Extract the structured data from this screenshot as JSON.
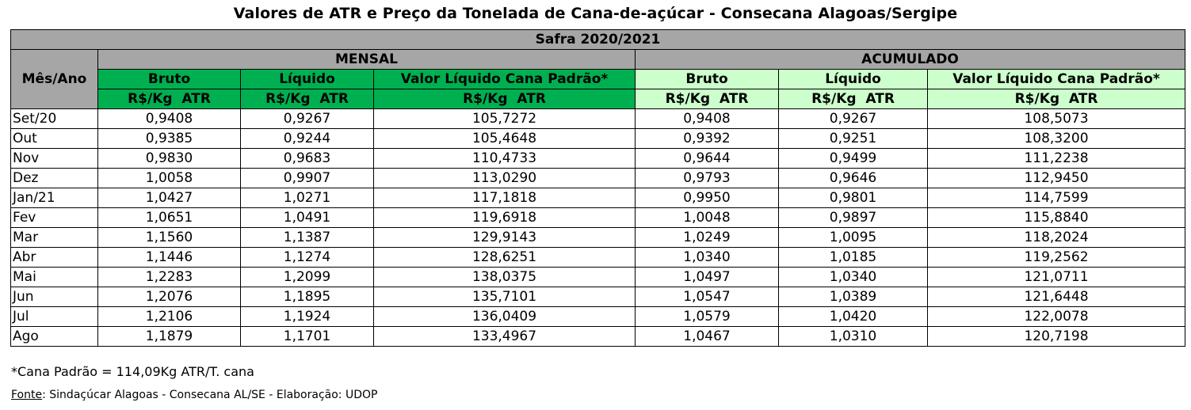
{
  "title": "Valores de ATR e Preço da Tonelada de Cana-de-açúcar - Consecana Alagoas/Sergipe",
  "safra": "Safra 2020/2021",
  "headers": {
    "mes_ano": "Mês/Ano",
    "mensal": "MENSAL",
    "acumulado": "ACUMULADO",
    "bruto": "Bruto",
    "liquido": "Líquido",
    "valor": "Valor Líquido Cana Padrão*",
    "unit": "R$/Kg  ATR"
  },
  "colors": {
    "grey": "#a6a6a6",
    "green_dark": "#00b050",
    "green_light": "#ccffcc"
  },
  "rows": [
    {
      "mes": "Set/20",
      "mb": "0,9408",
      "ml": "0,9267",
      "mv": "105,7272",
      "ab": "0,9408",
      "al": "0,9267",
      "av": "108,5073"
    },
    {
      "mes": "Out",
      "mb": "0,9385",
      "ml": "0,9244",
      "mv": "105,4648",
      "ab": "0,9392",
      "al": "0,9251",
      "av": "108,3200"
    },
    {
      "mes": "Nov",
      "mb": "0,9830",
      "ml": "0,9683",
      "mv": "110,4733",
      "ab": "0,9644",
      "al": "0,9499",
      "av": "111,2238"
    },
    {
      "mes": "Dez",
      "mb": "1,0058",
      "ml": "0,9907",
      "mv": "113,0290",
      "ab": "0,9793",
      "al": "0,9646",
      "av": "112,9450"
    },
    {
      "mes": "Jan/21",
      "mb": "1,0427",
      "ml": "1,0271",
      "mv": "117,1818",
      "ab": "0,9950",
      "al": "0,9801",
      "av": "114,7599"
    },
    {
      "mes": "Fev",
      "mb": "1,0651",
      "ml": "1,0491",
      "mv": "119,6918",
      "ab": "1,0048",
      "al": "0,9897",
      "av": "115,8840"
    },
    {
      "mes": "Mar",
      "mb": "1,1560",
      "ml": "1,1387",
      "mv": "129,9143",
      "ab": "1,0249",
      "al": "1,0095",
      "av": "118,2024"
    },
    {
      "mes": "Abr",
      "mb": "1,1446",
      "ml": "1,1274",
      "mv": "128,6251",
      "ab": "1,0340",
      "al": "1,0185",
      "av": "119,2562"
    },
    {
      "mes": "Mai",
      "mb": "1,2283",
      "ml": "1,2099",
      "mv": "138,0375",
      "ab": "1,0497",
      "al": "1,0340",
      "av": "121,0711"
    },
    {
      "mes": "Jun",
      "mb": "1,2076",
      "ml": "1,1895",
      "mv": "135,7101",
      "ab": "1,0547",
      "al": "1,0389",
      "av": "121,6448"
    },
    {
      "mes": "Jul",
      "mb": "1,2106",
      "ml": "1,1924",
      "mv": "136,0409",
      "ab": "1,0579",
      "al": "1,0420",
      "av": "122,0078"
    },
    {
      "mes": "Ago",
      "mb": "1,1879",
      "ml": "1,1701",
      "mv": "133,4967",
      "ab": "1,0467",
      "al": "1,0310",
      "av": "120,7198"
    }
  ],
  "note": "*Cana Padrão = 114,09Kg ATR/T. cana",
  "source_label": "Fonte",
  "source_text": ": Sindaçúcar Alagoas - Consecana AL/SE - Elaboração: UDOP"
}
